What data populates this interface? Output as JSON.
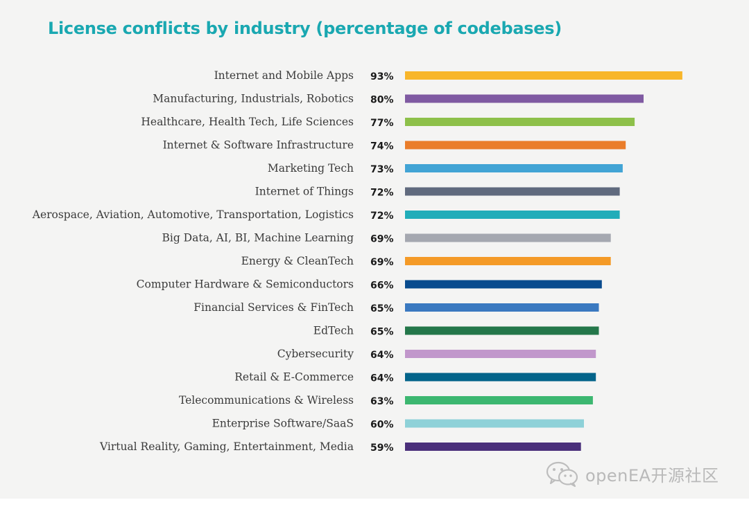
{
  "chart_data": {
    "type": "bar",
    "orientation": "horizontal",
    "title": "License conflicts by industry (percentage of codebases)",
    "categories": [
      "Internet and Mobile Apps",
      "Manufacturing, Industrials, Robotics",
      "Healthcare, Health Tech, Life Sciences",
      "Internet & Software Infrastructure",
      "Marketing Tech",
      "Internet of Things",
      "Aerospace, Aviation, Automotive, Transportation, Logistics",
      "Big Data, AI, BI, Machine Learning",
      "Energy & CleanTech",
      "Computer Hardware & Semiconductors",
      "Financial Services & FinTech",
      "EdTech",
      "Cybersecurity",
      "Retail & E-Commerce",
      "Telecommunications & Wireless",
      "Enterprise Software/SaaS",
      "Virtual Reality, Gaming, Entertainment, Media"
    ],
    "values": [
      93,
      80,
      77,
      74,
      73,
      72,
      72,
      69,
      69,
      66,
      65,
      65,
      64,
      64,
      63,
      60,
      59
    ],
    "value_labels": [
      "93%",
      "80%",
      "77%",
      "74%",
      "73%",
      "72%",
      "72%",
      "69%",
      "69%",
      "66%",
      "65%",
      "65%",
      "64%",
      "64%",
      "63%",
      "60%",
      "59%"
    ],
    "colors": [
      "#f8b62b",
      "#7f5aa2",
      "#8dc04a",
      "#ea7d2a",
      "#42a4d5",
      "#606a7e",
      "#21adb9",
      "#a5a8b0",
      "#f49a27",
      "#094b8e",
      "#3a79c0",
      "#24774a",
      "#c197cb",
      "#03648a",
      "#3cb770",
      "#8ed1d8",
      "#4a2f7a"
    ],
    "xlim": [
      0,
      100
    ],
    "grid": false,
    "legend": "none"
  },
  "watermark": {
    "text": "openEA开源社区",
    "icon": "wechat-icon"
  }
}
